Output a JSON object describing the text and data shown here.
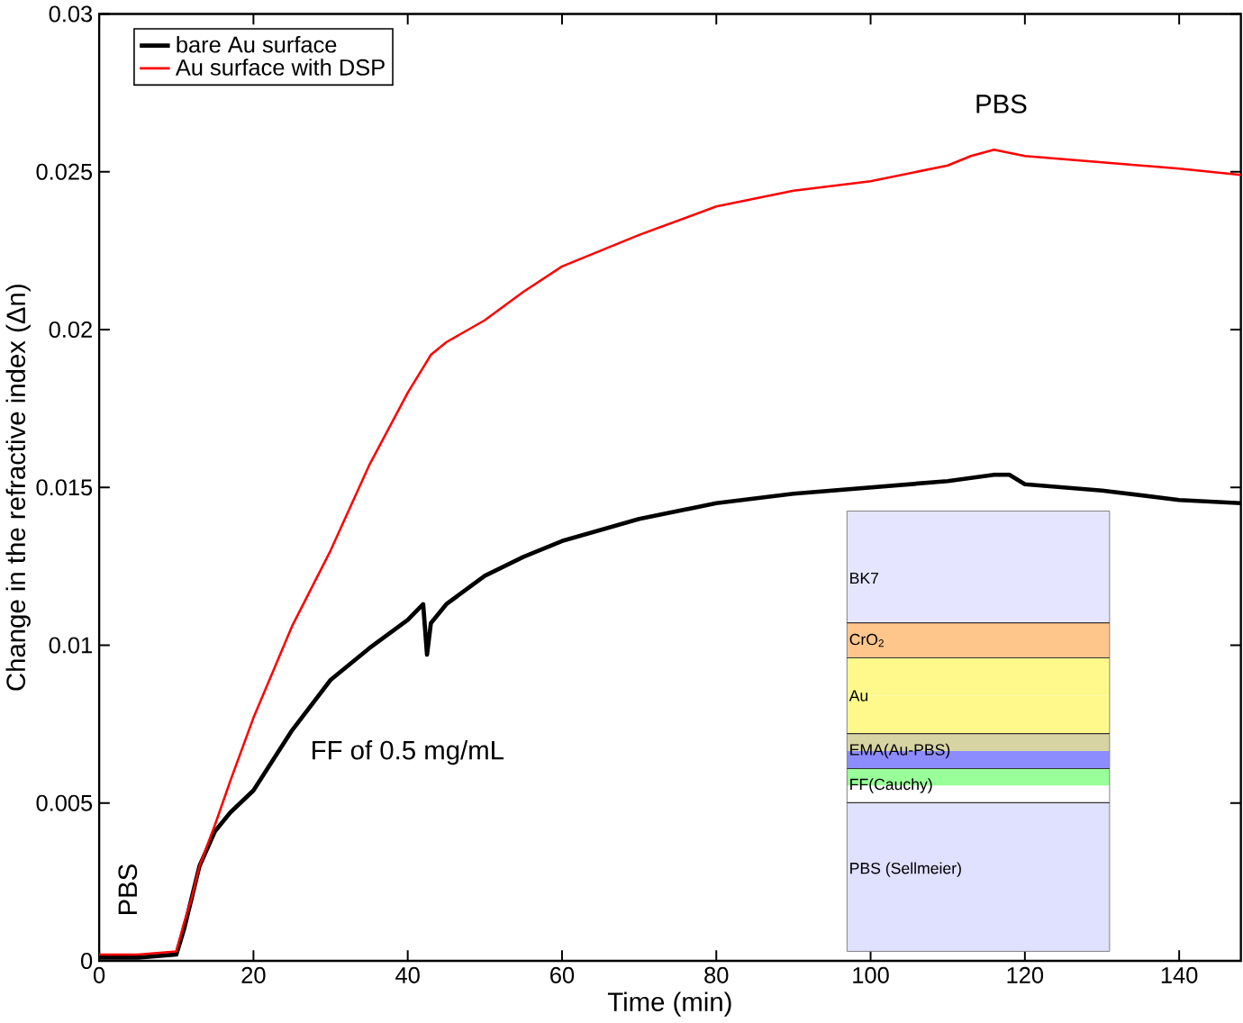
{
  "chart_data": {
    "type": "line",
    "xlabel": "Time (min)",
    "ylabel": "Change in the refractive index (Δn)",
    "xlim": [
      0,
      148
    ],
    "ylim": [
      0,
      0.03
    ],
    "xticks": [
      0,
      20,
      40,
      60,
      80,
      100,
      120,
      140
    ],
    "yticks": [
      0,
      0.005,
      0.01,
      0.015,
      0.02,
      0.025,
      0.03
    ],
    "legend": "top left",
    "grid": false,
    "marker": "none",
    "line_style": "solid",
    "x": [
      0,
      5,
      10,
      11,
      12,
      13,
      15,
      17,
      20,
      25,
      30,
      35,
      40,
      42,
      42.5,
      43,
      45,
      50,
      55,
      60,
      70,
      80,
      90,
      100,
      110,
      113,
      116,
      118,
      120,
      130,
      140,
      148
    ],
    "series": [
      {
        "name": "bare Au surface",
        "color": "#000000",
        "values": [
          0.0001,
          0.0001,
          0.0002,
          0.001,
          0.002,
          0.003,
          0.0041,
          0.0047,
          0.0054,
          0.0073,
          0.0089,
          0.0099,
          0.0108,
          0.0113,
          0.0097,
          0.0107,
          0.0113,
          0.0122,
          0.0128,
          0.0133,
          0.014,
          0.0145,
          0.0148,
          0.015,
          0.0152,
          0.0153,
          0.0154,
          0.0154,
          0.0151,
          0.0149,
          0.0146,
          0.0145
        ]
      },
      {
        "name": "Au surface with DSP",
        "color": "#ff0000",
        "values": [
          0.0002,
          0.0002,
          0.0003,
          0.0012,
          0.002,
          0.003,
          0.0043,
          0.0057,
          0.0077,
          0.0106,
          0.013,
          0.0157,
          0.018,
          0.0188,
          0.019,
          0.0192,
          0.0196,
          0.0203,
          0.0212,
          0.022,
          0.023,
          0.0239,
          0.0244,
          0.0247,
          0.0252,
          0.0255,
          0.0257,
          0.0256,
          0.0255,
          0.0253,
          0.0251,
          0.0249
        ]
      }
    ],
    "annotations": [
      "PBS",
      "FF of 0.5 mg/mL",
      "PBS",
      "BK7",
      "CrO$_{2}$",
      "Au",
      "EMA(Au-PBS)",
      "FF(Cauchy)",
      "PBS (Sellmeier)"
    ]
  }
}
